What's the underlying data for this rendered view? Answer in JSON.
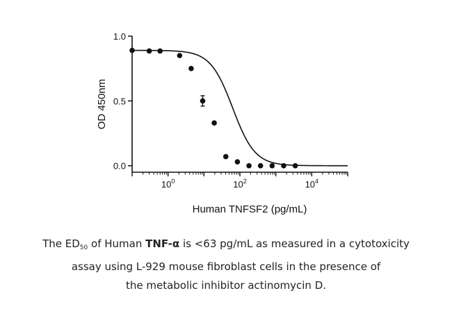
{
  "chart_data": {
    "type": "scatter",
    "xlabel": "Human TNFSF2 (pg/mL)",
    "ylabel": "OD 450nm",
    "x_scale": "log10",
    "xlim": [
      0.1,
      100000
    ],
    "ylim": [
      -0.05,
      1.0
    ],
    "x_ticks": [
      {
        "value": 1,
        "base": "10",
        "exp": "0"
      },
      {
        "value": 100,
        "base": "10",
        "exp": "2"
      },
      {
        "value": 10000,
        "base": "10",
        "exp": "4"
      }
    ],
    "y_ticks": [
      {
        "value": 0.0,
        "label": "0.0"
      },
      {
        "value": 0.5,
        "label": "0.5"
      },
      {
        "value": 1.0,
        "label": "1.0"
      }
    ],
    "x": [
      0.1,
      0.3,
      0.6,
      2.1,
      4.4,
      9.2,
      19.3,
      40.5,
      85.1,
      178.7,
      375.3,
      788.1,
      1655,
      3475
    ],
    "y": [
      0.89,
      0.885,
      0.885,
      0.85,
      0.75,
      0.5,
      0.33,
      0.07,
      0.03,
      0.0,
      0.0,
      0.0,
      0.0,
      0.0
    ],
    "error": [
      0,
      0,
      0,
      0,
      0,
      0.04,
      0,
      0,
      0,
      0,
      0,
      0,
      0,
      0
    ],
    "fit": {
      "type": "4PL",
      "top": 0.89,
      "bottom": 0.0,
      "ec50": 63,
      "hill": 1.4
    },
    "grid": false,
    "legend": "none"
  },
  "caption": {
    "part1": "The ED",
    "sub": "50",
    "part2": " of Human ",
    "bold": "TNF-α",
    "part3": " is <63 pg/mL as measured in a cytotoxicity",
    "line2": "assay using L-929 mouse fibroblast cells in the presence of",
    "line3": "the metabolic inhibitor actinomycin D."
  }
}
